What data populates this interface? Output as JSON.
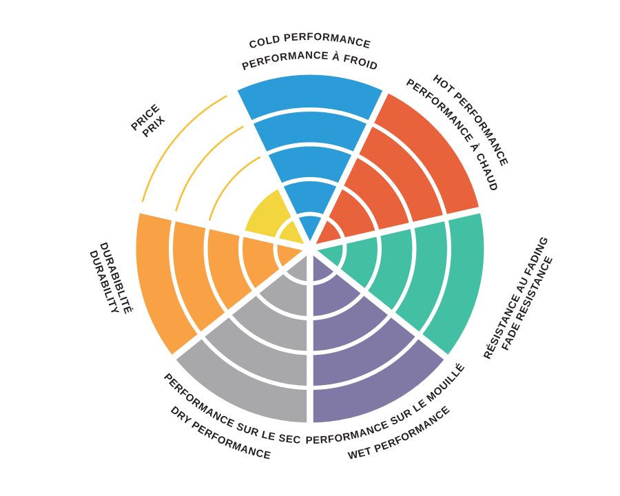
{
  "chart_data": {
    "type": "polar-sector-wheel",
    "title": "",
    "description": "Performance rating wheel with 7 criteria sectors, each divided into 5 concentric rating rings; filled rings indicate the rating value",
    "rings_total": 5,
    "text_color": "#231F20",
    "background_color": "#FFFFFF",
    "separator_color": "#FFFFFF",
    "legend_position": "none",
    "sectors": [
      {
        "id": "cold",
        "label_en": "COLD PERFORMANCE",
        "label_fr": "PERFORMANCE À FROID",
        "value": 5,
        "color": "#2B9CD8"
      },
      {
        "id": "hot",
        "label_en": "HOT PERFORMANCE",
        "label_fr": "PERFORMANCE À CHAUD",
        "value": 5,
        "color": "#E8623B"
      },
      {
        "id": "fade",
        "label_en": "FADE RESISTANCE",
        "label_fr": "RÉSISTANCE AU FADING",
        "value": 5,
        "color": "#43BFA3"
      },
      {
        "id": "wet",
        "label_en": "WET PERFORMANCE",
        "label_fr": "PERFORMANCE SUR LE MOUILLÉ",
        "value": 5,
        "color": "#8079A6"
      },
      {
        "id": "dry",
        "label_en": "DRY PERFORMANCE",
        "label_fr": "PERFORMANCE SUR LE SEC",
        "value": 5,
        "color": "#A8A8AB"
      },
      {
        "id": "durability",
        "label_en": "DURABILITY",
        "label_fr": "DURABIBLITÉ",
        "value": 5,
        "color": "#F9A245"
      },
      {
        "id": "price",
        "label_en": "PRICE",
        "label_fr": "PRIX",
        "value": 2,
        "color": "#F2D53F",
        "unfilled_ring_outline_color": "#F5C23C"
      }
    ]
  }
}
